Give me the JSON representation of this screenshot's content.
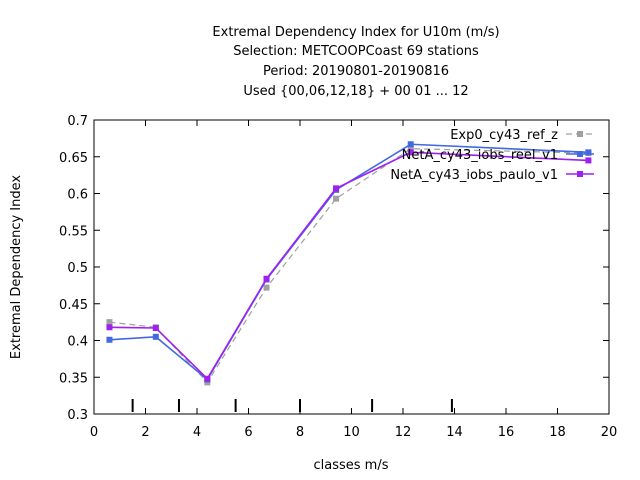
{
  "chart_data": {
    "type": "line",
    "title_lines": [
      "Extremal Dependency Index  for U10m (m/s)",
      "Selection: METCOOPCoast     69 stations",
      "Period: 20190801-20190816",
      "Used {00,06,12,18} + 00 01 ... 12"
    ],
    "xlabel": "classes m/s",
    "ylabel": "Extremal Dependency Index",
    "xlim": [
      0,
      20
    ],
    "ylim": [
      0.3,
      0.7
    ],
    "x_ticks": [
      0,
      2,
      4,
      6,
      8,
      10,
      12,
      14,
      16,
      18,
      20
    ],
    "y_ticks": [
      0.3,
      0.35,
      0.4,
      0.45,
      0.5,
      0.55,
      0.6,
      0.65,
      0.7
    ],
    "x_tick_labels": [
      "0",
      "2",
      "4",
      "6",
      "8",
      "10",
      "12",
      "14",
      "16",
      "18",
      "20"
    ],
    "y_tick_labels": [
      "0.3",
      "0.35",
      "0.4",
      "0.45",
      "0.5",
      "0.55",
      "0.6",
      "0.65",
      "0.7"
    ],
    "class_boundary_marks": [
      1.5,
      3.3,
      5.5,
      8.0,
      10.8,
      13.9
    ],
    "legend_position": "top-right",
    "grid": false,
    "series": [
      {
        "name": "Exp0_cy43_ref_z",
        "color": "#a0a0a0",
        "dashed": true,
        "x": [
          0.6,
          2.4,
          4.4,
          6.7,
          9.4,
          12.3,
          19.2
        ],
        "y": [
          0.425,
          0.418,
          0.343,
          0.472,
          0.593,
          0.661,
          0.655
        ]
      },
      {
        "name": "NetA_cy43_iobs_reel_v1",
        "color": "#4169e1",
        "dashed": false,
        "x": [
          0.6,
          2.4,
          4.4,
          6.7,
          9.4,
          12.3,
          19.2
        ],
        "y": [
          0.401,
          0.405,
          0.347,
          0.483,
          0.605,
          0.667,
          0.656
        ]
      },
      {
        "name": "NetA_cy43_iobs_paulo_v1",
        "color": "#a020f0",
        "dashed": false,
        "x": [
          0.6,
          2.4,
          4.4,
          6.7,
          9.4,
          12.3,
          19.2
        ],
        "y": [
          0.418,
          0.417,
          0.348,
          0.484,
          0.607,
          0.656,
          0.645
        ]
      }
    ]
  }
}
